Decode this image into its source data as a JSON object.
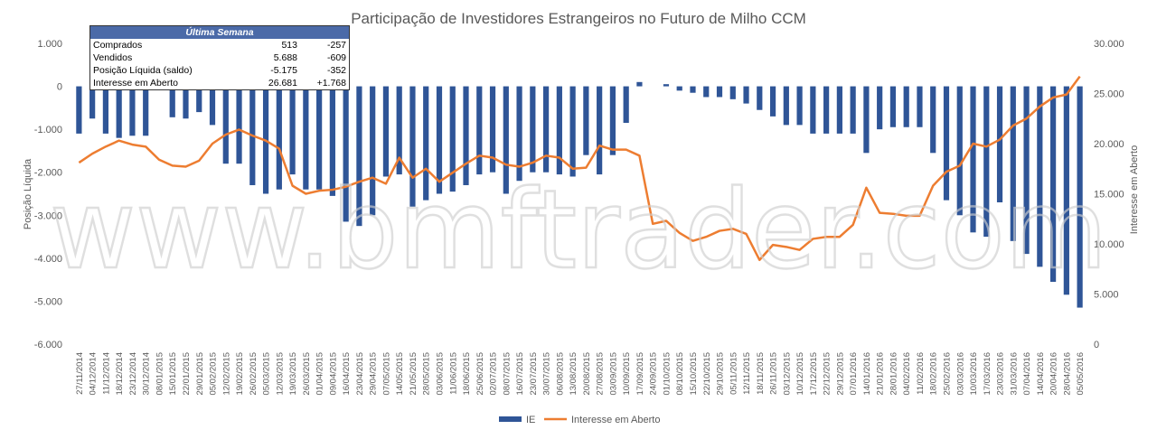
{
  "chart_data": {
    "type": "bar",
    "title": "Participação de Investidores Estrangeiros no Futuro de Milho CCM",
    "ylabel_left": "Posição Líquida",
    "ylabel_right": "Interesse em Aberto",
    "ylim_left": [
      -6000,
      1000
    ],
    "ylim_right": [
      0,
      30000
    ],
    "yticks_left": [
      "1.000",
      "0",
      "-1.000",
      "-2.000",
      "-3.000",
      "-4.000",
      "-5.000",
      "-6.000"
    ],
    "yticks_right": [
      "30.000",
      "25.000",
      "20.000",
      "15.000",
      "10.000",
      "5.000",
      "0"
    ],
    "grid": false,
    "legend_position": "bottom",
    "categories": [
      "27/11/2014",
      "04/12/2014",
      "11/12/2014",
      "18/12/2014",
      "23/12/2014",
      "30/12/2014",
      "08/01/2015",
      "15/01/2015",
      "22/01/2015",
      "29/01/2015",
      "05/02/2015",
      "12/02/2015",
      "19/02/2015",
      "26/02/2015",
      "05/03/2015",
      "12/03/2015",
      "19/03/2015",
      "26/03/2015",
      "01/04/2015",
      "09/04/2015",
      "16/04/2015",
      "23/04/2015",
      "29/04/2015",
      "07/05/2015",
      "14/05/2015",
      "21/05/2015",
      "28/05/2015",
      "03/06/2015",
      "11/06/2015",
      "18/06/2015",
      "25/06/2015",
      "02/07/2015",
      "08/07/2015",
      "16/07/2015",
      "23/07/2015",
      "30/07/2015",
      "06/08/2015",
      "13/08/2015",
      "20/08/2015",
      "27/08/2015",
      "03/09/2015",
      "10/09/2015",
      "17/09/2015",
      "24/09/2015",
      "01/10/2015",
      "08/10/2015",
      "15/10/2015",
      "22/10/2015",
      "29/10/2015",
      "05/11/2015",
      "12/11/2015",
      "18/11/2015",
      "26/11/2015",
      "03/12/2015",
      "10/12/2015",
      "17/12/2015",
      "22/12/2015",
      "29/12/2015",
      "07/01/2016",
      "14/01/2016",
      "21/01/2016",
      "28/01/2016",
      "04/02/2016",
      "11/02/2016",
      "18/02/2016",
      "25/02/2016",
      "03/03/2016",
      "10/03/2016",
      "17/03/2016",
      "23/03/2016",
      "31/03/2016",
      "07/04/2016",
      "14/04/2016",
      "20/04/2016",
      "28/04/2016",
      "05/05/2016"
    ],
    "series": [
      {
        "name": "IE",
        "kind": "bar",
        "axis": "left",
        "color": "#2f5597",
        "values": [
          -1100,
          -750,
          -1100,
          -1200,
          -1150,
          -1150,
          0,
          -720,
          -750,
          -600,
          -900,
          -1800,
          -1800,
          -2300,
          -2500,
          -2400,
          -2050,
          -2400,
          -2400,
          -2550,
          -3150,
          -3250,
          -3000,
          -2100,
          -2050,
          -2800,
          -2650,
          -2500,
          -2450,
          -2300,
          -2050,
          -2000,
          -2500,
          -2200,
          -2000,
          -2000,
          -2050,
          -2100,
          -1600,
          -2050,
          -1600,
          -850,
          100,
          0,
          50,
          -100,
          -150,
          -250,
          -250,
          -300,
          -400,
          -550,
          -700,
          -900,
          -900,
          -1100,
          -1100,
          -1100,
          -1100,
          -1550,
          -1000,
          -950,
          -950,
          -950,
          -1550,
          -2650,
          -3000,
          -3400,
          -3500,
          -2700,
          -3600,
          -3900,
          -4200,
          -4550,
          -4850,
          -5150
        ]
      },
      {
        "name": "Interesse em Aberto",
        "kind": "line",
        "axis": "right",
        "color": "#ed7d31",
        "values": [
          18100,
          19000,
          19700,
          20300,
          19900,
          19700,
          18400,
          17800,
          17700,
          18300,
          20000,
          20900,
          21400,
          20800,
          20300,
          19500,
          15800,
          15000,
          15300,
          15400,
          15700,
          16200,
          16600,
          16000,
          18600,
          16600,
          17500,
          16200,
          17100,
          18000,
          18800,
          18600,
          17900,
          17700,
          18100,
          18800,
          18600,
          17500,
          17600,
          19800,
          19400,
          19400,
          18800,
          12000,
          12300,
          11100,
          10300,
          10700,
          11300,
          11500,
          11000,
          8400,
          9900,
          9700,
          9400,
          10500,
          10700,
          10700,
          11900,
          15600,
          13100,
          13000,
          12800,
          12800,
          15800,
          17200,
          17800,
          20000,
          19700,
          20400,
          21800,
          22500,
          23700,
          24600,
          24900,
          26700
        ]
      }
    ]
  },
  "summary_table": {
    "header": "Última Semana",
    "rows": [
      {
        "label": "Comprados",
        "value": "513",
        "change": "-257"
      },
      {
        "label": "Vendidos",
        "value": "5.688",
        "change": "-609"
      },
      {
        "label": "Posição Líquida (saldo)",
        "value": "-5.175",
        "change": "-352"
      },
      {
        "label": "Interesse em Aberto",
        "value": "26.681",
        "change": "+1.768"
      }
    ]
  },
  "watermark": "www.bmftrader.com"
}
